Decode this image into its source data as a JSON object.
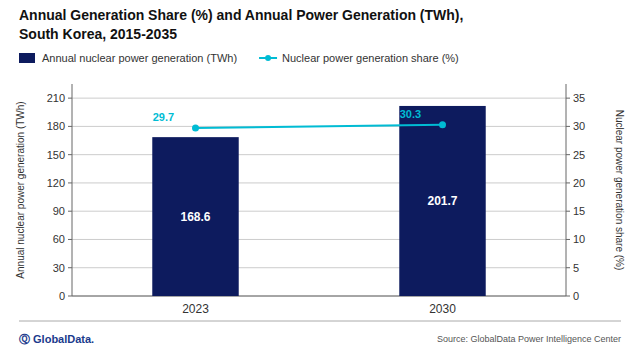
{
  "chart_data": {
    "type": "bar",
    "title": "Annual Generation Share (%) and Annual Power Generation (TWh),",
    "subtitle": "South Korea, 2015-2035",
    "categories": [
      "2023",
      "2030"
    ],
    "series": [
      {
        "name": "Annual nuclear power generation (TWh)",
        "type": "bar",
        "color": "#0d1b5e",
        "values": [
          168.6,
          201.7
        ]
      },
      {
        "name": "Nuclear power generation share (%)",
        "type": "line",
        "color": "#00bcd4",
        "marker": "circle",
        "axis": "y2",
        "values": [
          29.7,
          30.3
        ]
      }
    ],
    "ylabel": "Annual nuclear power generation (TWh)",
    "y2label": "Nuclear power generation share (%)",
    "ylim": [
      0,
      225
    ],
    "yticks": [
      0,
      30,
      60,
      90,
      120,
      150,
      180,
      210
    ],
    "y2lim": [
      0,
      37.5
    ],
    "y2ticks": [
      0,
      5,
      10,
      15,
      20,
      25,
      30,
      35
    ],
    "grid": true,
    "legend": "top-left",
    "data_labels": true,
    "annotations": [
      "Ⓠ GlobalData.",
      "Source: GlobalData Power Intelligence Center"
    ]
  }
}
